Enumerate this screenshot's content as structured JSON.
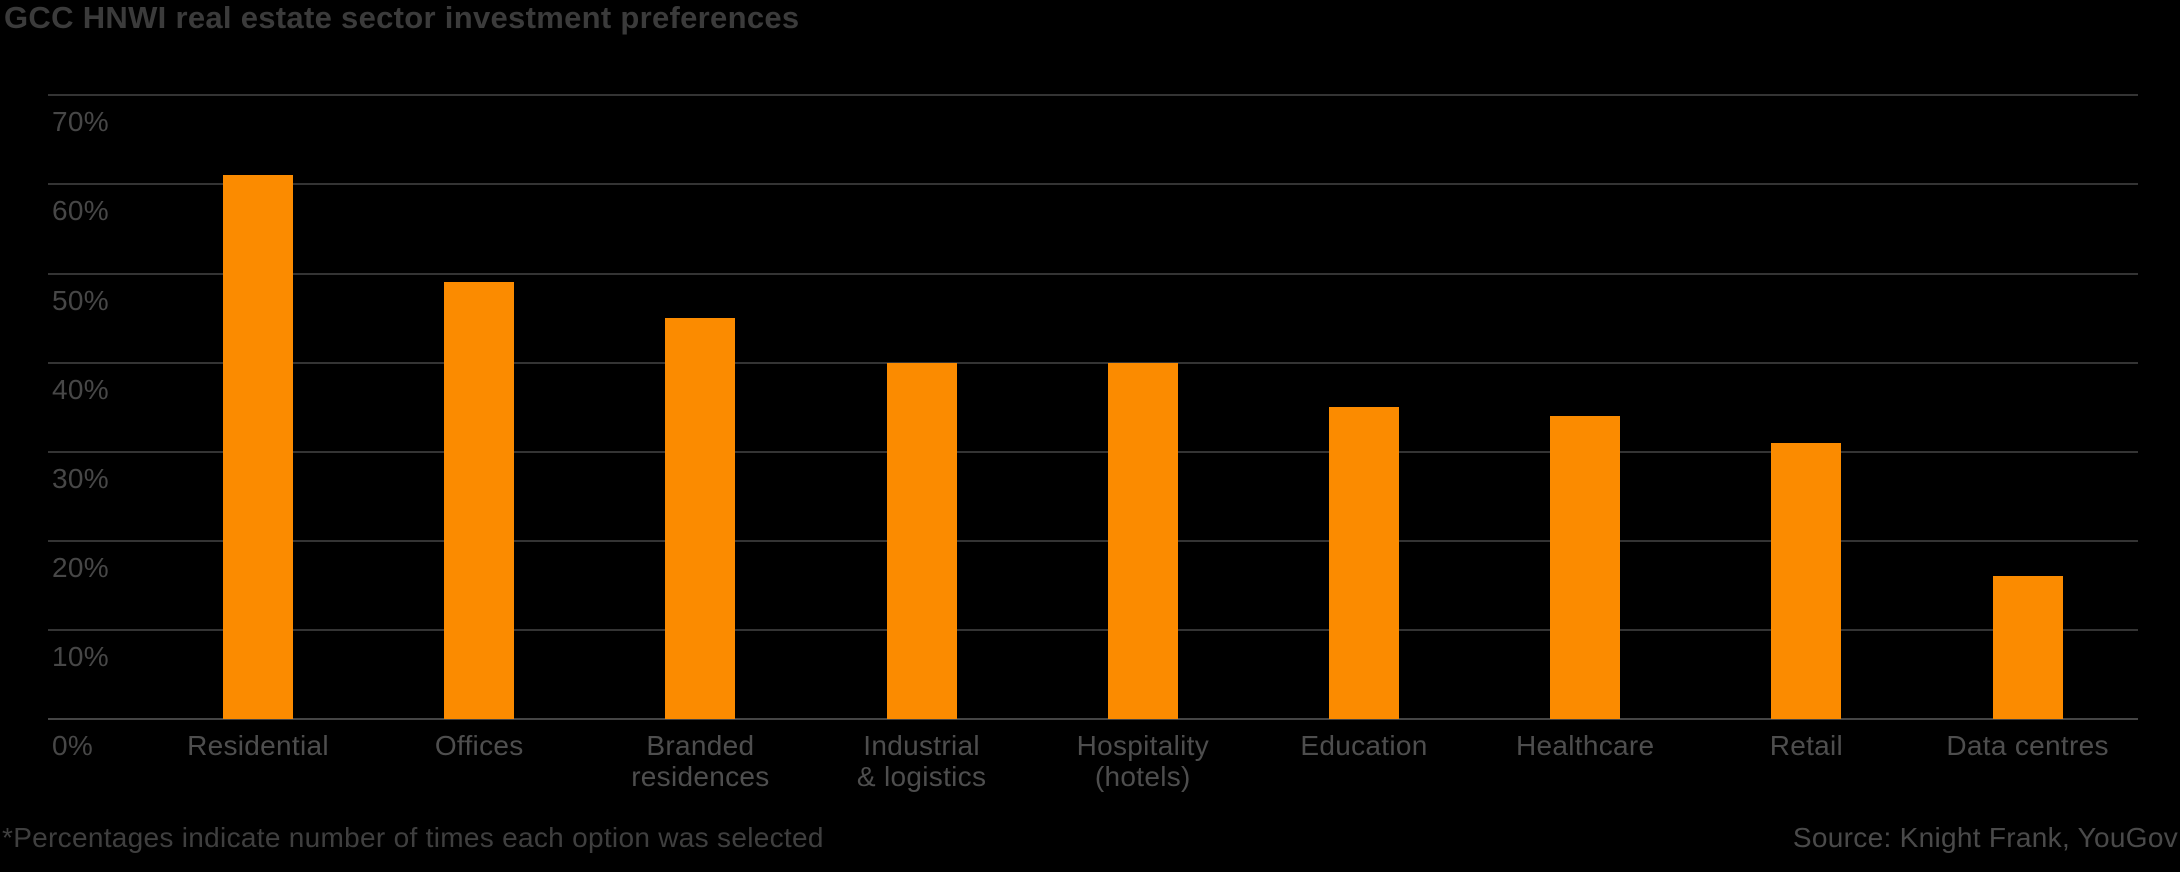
{
  "title": "GCC HNWI real estate sector investment preferences",
  "footnote": "*Percentages indicate number of times each option was selected",
  "source": "Source: Knight Frank, YouGov",
  "colors": {
    "background": "#000000",
    "bar": "#FB8B00",
    "gridline": "#343434",
    "axis_line": "#454545",
    "title_text": "#3b3b3b",
    "tick_text": "#474747",
    "category_text": "#4e4e4e",
    "footnote_text": "#3f3f3f",
    "source_text": "#4a4a4a"
  },
  "chart_data": {
    "type": "bar",
    "title": "GCC HNWI real estate sector investment preferences",
    "categories": [
      "Residential",
      "Offices",
      "Branded\nresidences",
      "Industrial\n& logistics",
      "Hospitality\n(hotels)",
      "Education",
      "Healthcare",
      "Retail",
      "Data centres"
    ],
    "values": [
      61,
      49,
      45,
      40,
      40,
      35,
      34,
      31,
      16
    ],
    "unit": "%",
    "xlabel": "",
    "ylabel": "",
    "ylim": [
      0,
      70
    ],
    "ytick_step": 10,
    "ytick_labels": [
      "0%",
      "10%",
      "20%",
      "30%",
      "40%",
      "50%",
      "60%",
      "70%"
    ],
    "grid": "horizontal",
    "legend": "none",
    "bar_color": "#FB8B00"
  }
}
